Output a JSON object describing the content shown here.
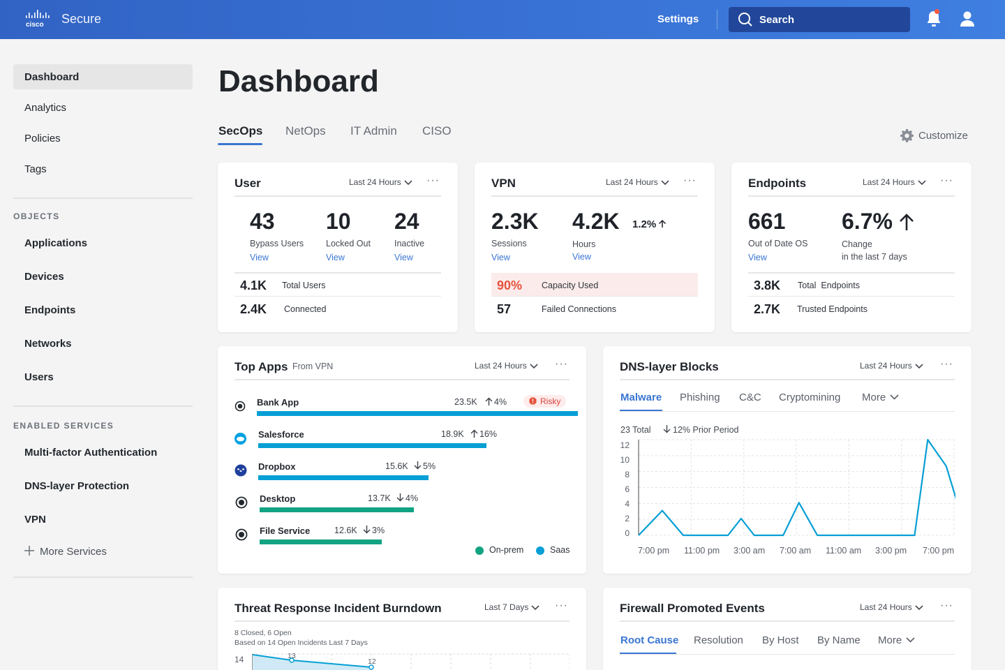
{
  "header": {
    "brand": "Secure",
    "settings_label": "Settings",
    "search_label": "Search"
  },
  "sidebar": {
    "items": [
      "Dashboard",
      "Analytics",
      "Policies",
      "Tags"
    ],
    "objects_heading": "OBJECTS",
    "objects": [
      "Applications",
      "Devices",
      "Endpoints",
      "Networks",
      "Users"
    ],
    "services_heading": "ENABLED SERVICES",
    "services": [
      "Multi-factor Authentication",
      "DNS-layer Protection",
      "VPN"
    ],
    "more_services": "More Services"
  },
  "page": {
    "title": "Dashboard",
    "tabs": [
      "SecOps",
      "NetOps",
      "IT Admin",
      "CISO"
    ],
    "customize_label": "Customize"
  },
  "user_card": {
    "title": "User",
    "range": "Last 24 Hours",
    "stats": [
      {
        "value": "43",
        "label": "Bypass Users",
        "link": "View"
      },
      {
        "value": "10",
        "label": "Locked Out",
        "link": "View"
      },
      {
        "value": "24",
        "label": "Inactive",
        "link": "View"
      }
    ],
    "rows": [
      {
        "value": "4.1K",
        "label": "Total Users"
      },
      {
        "value": "2.4K",
        "label": "Connected"
      }
    ]
  },
  "vpn_card": {
    "title": "VPN",
    "range": "Last 24 Hours",
    "stats": [
      {
        "value": "2.3K",
        "label": "Sessions",
        "link": "View"
      },
      {
        "value": "4.2K",
        "label": "Hours",
        "link": "View",
        "change": "1.2%"
      }
    ],
    "rows": [
      {
        "value": "90%",
        "label": "Capacity Used"
      },
      {
        "value": "57",
        "label": "Failed Connections"
      }
    ]
  },
  "endpoints_card": {
    "title": "Endpoints",
    "range": "Last 24 Hours",
    "stats": [
      {
        "value": "661",
        "label": "Out of Date OS",
        "link": "View"
      },
      {
        "value": "6.7%",
        "label": "Change",
        "label2": "in the last 7 days"
      }
    ],
    "rows": [
      {
        "value": "3.8K",
        "label": "Total  Endpoints"
      },
      {
        "value": "2.7K",
        "label": "Trusted Endpoints"
      }
    ]
  },
  "top_apps": {
    "title": "Top Apps",
    "subtitle": "From VPN",
    "range": "Last 24 Hours",
    "risky_label": "Risky",
    "apps": [
      {
        "name": "Bank App",
        "value": "23.5K",
        "change": "4%",
        "dir": "up",
        "type": "Saas",
        "fraction": 1.0,
        "risky": true
      },
      {
        "name": "Salesforce",
        "value": "18.9K",
        "change": "16%",
        "dir": "up",
        "type": "Saas",
        "fraction": 0.71
      },
      {
        "name": "Dropbox",
        "value": "15.6K",
        "change": "5%",
        "dir": "down",
        "type": "Saas",
        "fraction": 0.53
      },
      {
        "name": "Desktop",
        "value": "13.7K",
        "change": "4%",
        "dir": "down",
        "type": "On-prem",
        "fraction": 0.48
      },
      {
        "name": "File Service",
        "value": "12.6K",
        "change": "3%",
        "dir": "down",
        "type": "On-prem",
        "fraction": 0.38
      }
    ],
    "legend": [
      {
        "label": "On-prem",
        "color": "#12a383"
      },
      {
        "label": "Saas",
        "color": "#079fd5"
      }
    ]
  },
  "dns_card": {
    "title": "DNS-layer Blocks",
    "range": "Last 24 Hours",
    "tabs": [
      "Malware",
      "Phishing",
      "C&C",
      "Cryptomining",
      "More"
    ],
    "total": "23 Total",
    "prior": "12% Prior Period",
    "chart_data": {
      "type": "line",
      "x": [
        "7:00 pm",
        "11:00 pm",
        "3:00 am",
        "7:00 am",
        "11:00 am",
        "3:00 pm",
        "7:00 pm"
      ],
      "y_ticks": [
        "12",
        "10",
        "8",
        "6",
        "4",
        "2",
        "0"
      ],
      "ylim": [
        0,
        12
      ],
      "points": [
        {
          "x": 0,
          "y": 0
        },
        {
          "x": 0.45,
          "y": 3.1
        },
        {
          "x": 0.85,
          "y": 0
        },
        {
          "x": 1.7,
          "y": 0
        },
        {
          "x": 1.95,
          "y": 2.1
        },
        {
          "x": 2.2,
          "y": 0
        },
        {
          "x": 2.75,
          "y": 0
        },
        {
          "x": 3.05,
          "y": 4.1
        },
        {
          "x": 3.4,
          "y": 0
        },
        {
          "x": 5.25,
          "y": 0
        },
        {
          "x": 5.5,
          "y": 12
        },
        {
          "x": 5.85,
          "y": 8.7
        },
        {
          "x": 6.25,
          "y": 0
        },
        {
          "x": 6.8,
          "y": 0
        }
      ],
      "color": "#079fd5"
    }
  },
  "threat_card": {
    "title": "Threat Response Incident Burndown",
    "range": "Last 7 Days",
    "line1": "8 Closed, 6 Open",
    "line2": "Based on 14 Open Incidents Last 7 Days",
    "y_first": "14",
    "labels": [
      "13",
      "12"
    ]
  },
  "firewall_card": {
    "title": "Firewall Promoted Events",
    "range": "Last 24 Hours",
    "tabs": [
      "Root Cause",
      "Resolution",
      "By Host",
      "By Name",
      "More"
    ]
  }
}
